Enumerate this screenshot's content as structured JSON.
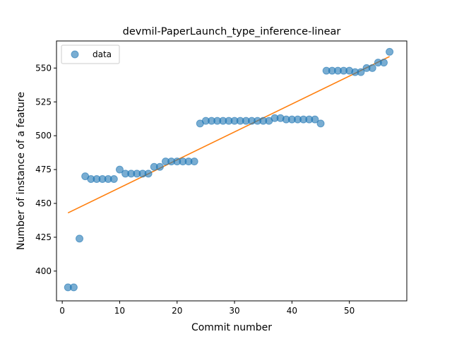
{
  "chart_data": {
    "type": "scatter",
    "title": "devmil-PaperLaunch_type_inference-linear",
    "xlabel": "Commit number",
    "ylabel": "Number of instance of a feature",
    "xlim": [
      -1,
      60
    ],
    "ylim": [
      378,
      570
    ],
    "xticks": [
      0,
      10,
      20,
      30,
      40,
      50
    ],
    "yticks": [
      400,
      425,
      450,
      475,
      500,
      525,
      550
    ],
    "grid": false,
    "legend_position": "upper left",
    "series": [
      {
        "name": "data",
        "kind": "markers",
        "color": "#1f77b4",
        "x": [
          1,
          2,
          3,
          4,
          5,
          6,
          7,
          8,
          9,
          10,
          11,
          12,
          13,
          14,
          15,
          16,
          17,
          18,
          19,
          20,
          21,
          22,
          23,
          24,
          25,
          26,
          27,
          28,
          29,
          30,
          31,
          32,
          33,
          34,
          35,
          36,
          37,
          38,
          39,
          40,
          41,
          42,
          43,
          44,
          45,
          46,
          47,
          48,
          49,
          50,
          51,
          52,
          53,
          54,
          55,
          56,
          57
        ],
        "y": [
          388,
          388,
          424,
          470,
          468,
          468,
          468,
          468,
          468,
          475,
          472,
          472,
          472,
          472,
          472,
          477,
          477,
          481,
          481,
          481,
          481,
          481,
          481,
          509,
          511,
          511,
          511,
          511,
          511,
          511,
          511,
          511,
          511,
          511,
          511,
          511,
          513,
          513,
          512,
          512,
          512,
          512,
          512,
          512,
          509,
          548,
          548,
          548,
          548,
          548,
          547,
          547,
          550,
          550,
          554,
          554,
          562
        ]
      },
      {
        "kind": "fit-line",
        "color": "#ff7f0e",
        "x": [
          1,
          57
        ],
        "y": [
          443,
          558.5
        ]
      }
    ]
  }
}
